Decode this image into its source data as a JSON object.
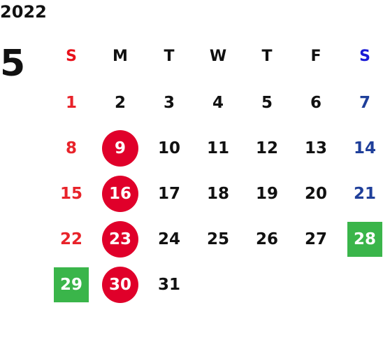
{
  "calendar": {
    "year": "2022",
    "month": "5",
    "weekdays": [
      {
        "label": "S",
        "color": "#e8111b"
      },
      {
        "label": "M",
        "color": "#111111"
      },
      {
        "label": "T",
        "color": "#111111"
      },
      {
        "label": "W",
        "color": "#111111"
      },
      {
        "label": "T",
        "color": "#111111"
      },
      {
        "label": "F",
        "color": "#111111"
      },
      {
        "label": "S",
        "color": "#1a1ad6"
      }
    ],
    "weeks": [
      [
        {
          "day": "1",
          "color": "#e8232a"
        },
        {
          "day": "2"
        },
        {
          "day": "3"
        },
        {
          "day": "4"
        },
        {
          "day": "5"
        },
        {
          "day": "6"
        },
        {
          "day": "7",
          "color": "#1f3f9a"
        }
      ],
      [
        {
          "day": "8",
          "color": "#e8232a"
        },
        {
          "day": "9",
          "highlight": "circle"
        },
        {
          "day": "10"
        },
        {
          "day": "11"
        },
        {
          "day": "12"
        },
        {
          "day": "13"
        },
        {
          "day": "14",
          "color": "#1f3f9a"
        }
      ],
      [
        {
          "day": "15",
          "color": "#e8232a"
        },
        {
          "day": "16",
          "highlight": "circle"
        },
        {
          "day": "17"
        },
        {
          "day": "18"
        },
        {
          "day": "19"
        },
        {
          "day": "20"
        },
        {
          "day": "21",
          "color": "#1f3f9a"
        }
      ],
      [
        {
          "day": "22",
          "color": "#e8232a"
        },
        {
          "day": "23",
          "highlight": "circle"
        },
        {
          "day": "24"
        },
        {
          "day": "25"
        },
        {
          "day": "26"
        },
        {
          "day": "27"
        },
        {
          "day": "28",
          "highlight": "square"
        }
      ],
      [
        {
          "day": "29",
          "highlight": "square"
        },
        {
          "day": "30",
          "highlight": "circle"
        },
        {
          "day": "31"
        },
        {
          "day": ""
        },
        {
          "day": ""
        },
        {
          "day": ""
        },
        {
          "day": ""
        }
      ]
    ]
  },
  "colors": {
    "text": "#111111",
    "sunday": "#e8232a",
    "saturday": "#1f3f9a",
    "circle_highlight": "#e0002a",
    "square_highlight": "#3ab54a"
  }
}
